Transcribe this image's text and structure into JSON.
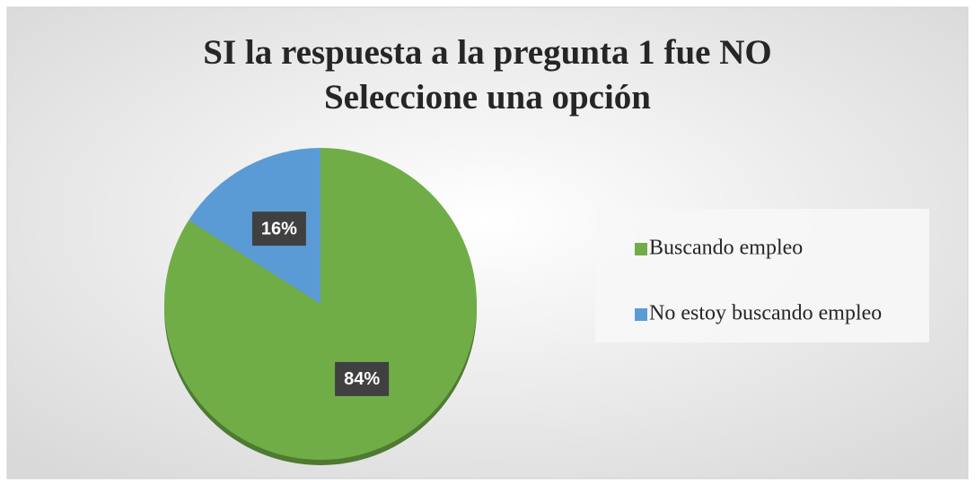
{
  "chart_data": {
    "type": "pie",
    "title": [
      "SI la respuesta a la pregunta 1 fue NO",
      "Seleccione una opción"
    ],
    "categories": [
      "Buscando empleo",
      "No estoy buscando empleo"
    ],
    "values": [
      84,
      16
    ],
    "value_labels": [
      "84%",
      "16%"
    ],
    "colors": [
      "#70ad47",
      "#5b9bd5"
    ],
    "legend": "right"
  }
}
